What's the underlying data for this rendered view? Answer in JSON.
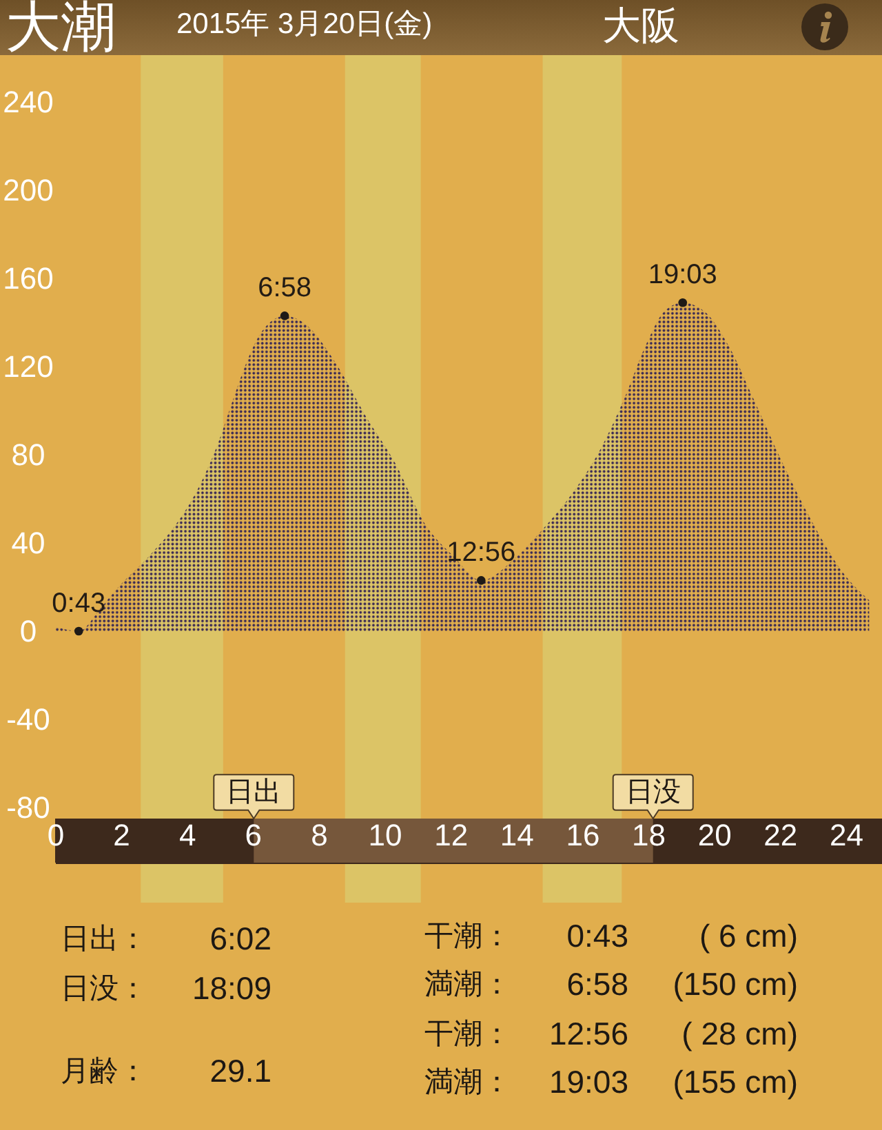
{
  "chart_data": {
    "type": "area",
    "title": "大潮",
    "subtitle": "2015年 3月20日(金)",
    "xlim": [
      0,
      25.1
    ],
    "ylim": [
      -105,
      240
    ],
    "xticks": [
      0,
      2,
      4,
      6,
      8,
      10,
      12,
      14,
      16,
      18,
      20,
      22,
      24
    ],
    "yticks": [
      -80,
      -40,
      0,
      40,
      80,
      120,
      160,
      200,
      240
    ],
    "series": [
      {
        "color": "#3a2a55",
        "x": [
          0,
          0.717,
          1.36,
          1.8,
          2.85,
          3.6,
          4.35,
          4.94,
          5.4,
          5.84,
          6.28,
          6.967,
          7.62,
          8.54,
          9.41,
          10.33,
          11.21,
          12.09,
          12.933,
          14.02,
          14.85,
          15.82,
          16.57,
          17.32,
          17.91,
          18.49,
          19.05,
          19.71,
          20.46,
          21.21,
          22.09,
          23.0,
          23.89,
          24.71
        ],
        "values": [
          2,
          0,
          10,
          18,
          34,
          47,
          65,
          85,
          105,
          123,
          136,
          143,
          139,
          121,
          98,
          76,
          49,
          34,
          23,
          34,
          47,
          65,
          83,
          107,
          129,
          145,
          149,
          145,
          129,
          105,
          76,
          49,
          27,
          14
        ]
      },
      {
        "type": "scatter",
        "color": "#1e1a17",
        "marker": "circle",
        "x": [
          0.717,
          6.967,
          12.933,
          19.05
        ],
        "values": [
          0,
          143,
          23,
          149
        ]
      }
    ],
    "bands": [
      {
        "axis": "x",
        "from": 2.6,
        "to": 5.1,
        "color": "#dcc466"
      },
      {
        "axis": "x",
        "from": 8.8,
        "to": 11.1,
        "color": "#dcc466"
      },
      {
        "axis": "x",
        "from": 14.8,
        "to": 17.2,
        "color": "#dcc466"
      },
      {
        "axis": "x",
        "from": 6.03,
        "to": 18.15,
        "color": "#76573b"
      }
    ],
    "annotations": [
      "大阪",
      {
        "text": "0:43",
        "x": 0.717,
        "y": 0
      },
      {
        "text": "6:58",
        "x": 6.967,
        "y": 143
      },
      {
        "text": "12:56",
        "x": 12.933,
        "y": 23
      },
      {
        "text": "19:03",
        "x": 19.05,
        "y": 149
      },
      {
        "text": "日出",
        "x": 6.03,
        "y": -85
      },
      {
        "text": "日没",
        "x": 18.15,
        "y": -85
      },
      "日出：  6:02",
      "日没：  18:09",
      "月齢：  29.1",
      "干潮：  0:43  ( 6 cm)",
      "満潮：  6:58  (150 cm)",
      "干潮：  12:56  ( 28 cm)",
      "満潮：  19:03  (155 cm)"
    ]
  }
}
